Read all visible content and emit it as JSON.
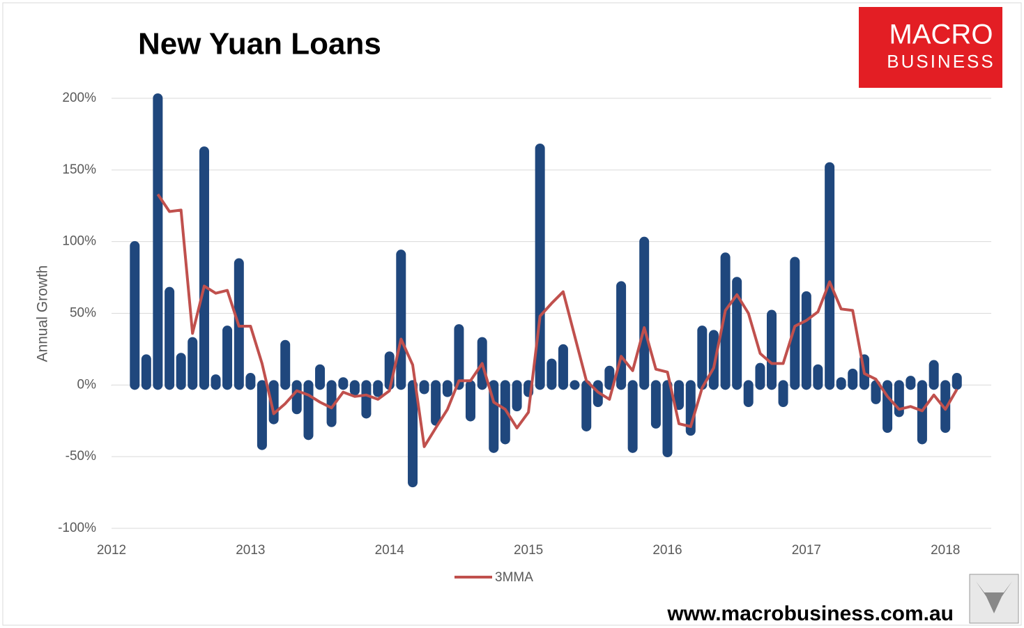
{
  "chart_data": {
    "type": "bar+line",
    "title": "New Yuan Loans",
    "y_label": "Annual Growth",
    "logo": [
      "MACRO",
      "BUSINESS"
    ],
    "footer": "www.macrobusiness.com.au",
    "x": [
      2012.167,
      2012.25,
      2012.333,
      2012.417,
      2012.5,
      2012.583,
      2012.667,
      2012.75,
      2012.833,
      2012.917,
      2013.0,
      2013.083,
      2013.167,
      2013.25,
      2013.333,
      2013.417,
      2013.5,
      2013.583,
      2013.667,
      2013.75,
      2013.833,
      2013.917,
      2014.0,
      2014.083,
      2014.167,
      2014.25,
      2014.333,
      2014.417,
      2014.5,
      2014.583,
      2014.667,
      2014.75,
      2014.833,
      2014.917,
      2015.0,
      2015.083,
      2015.167,
      2015.25,
      2015.333,
      2015.417,
      2015.5,
      2015.583,
      2015.667,
      2015.75,
      2015.833,
      2015.917,
      2016.0,
      2016.083,
      2016.167,
      2016.25,
      2016.333,
      2016.417,
      2016.5,
      2016.583,
      2016.667,
      2016.75,
      2016.833,
      2016.917,
      2017.0,
      2017.083,
      2017.167,
      2017.25,
      2017.333,
      2017.417,
      2017.5,
      2017.583,
      2017.667,
      2017.75,
      2017.833,
      2017.917,
      2018.0,
      2018.083
    ],
    "series": [
      {
        "type": "bar",
        "color": "#1f477d",
        "values": [
          97,
          18,
          200,
          65,
          19,
          30,
          163,
          4,
          38,
          85,
          5,
          -42,
          -24,
          28,
          -17,
          -35,
          11,
          -26,
          2,
          -4,
          -20,
          -5,
          20,
          91,
          -68,
          -3,
          -25,
          -5,
          39,
          -22,
          30,
          -44,
          -38,
          -15,
          -5,
          165,
          15,
          25,
          0,
          -29,
          -12,
          10,
          69,
          -44,
          100,
          -27,
          -47,
          -14,
          -32,
          38,
          35,
          89,
          72,
          -12,
          12,
          49,
          -12,
          86,
          62,
          11,
          152,
          2,
          8,
          18,
          -10,
          -30,
          -19,
          3,
          -38,
          14,
          -30,
          5
        ]
      },
      {
        "type": "line",
        "name": "3MMA",
        "color": "#c0504d",
        "values": [
          null,
          null,
          133,
          121,
          122,
          36,
          69,
          64,
          66,
          41,
          41,
          15,
          -20,
          -13,
          -4,
          -7,
          -12,
          -16,
          -5,
          -8,
          -7,
          -10,
          -4,
          32,
          14,
          -43,
          -30,
          -17,
          3,
          3,
          15,
          -12,
          -17,
          -30,
          -19,
          48,
          57,
          65,
          34,
          3,
          -5,
          -10,
          20,
          10,
          40,
          11,
          9,
          -27,
          -29,
          -2,
          12,
          52,
          63,
          50,
          22,
          15,
          15,
          41,
          45,
          51,
          72,
          53,
          52,
          8,
          4,
          -8,
          -17,
          -15,
          -18,
          -7,
          -17,
          -3
        ]
      }
    ],
    "xlim": [
      2012,
      2018.33
    ],
    "xticks": [
      2012,
      2013,
      2014,
      2015,
      2016,
      2017,
      2018
    ],
    "ylim": [
      -100,
      200
    ],
    "yticks": [
      {
        "value": -100,
        "label": "-100%"
      },
      {
        "value": -50,
        "label": "-50%"
      },
      {
        "value": 0,
        "label": "0%"
      },
      {
        "value": 50,
        "label": "50%"
      },
      {
        "value": 100,
        "label": "100%"
      },
      {
        "value": 150,
        "label": "150%"
      },
      {
        "value": 200,
        "label": "200%"
      }
    ],
    "grid": true,
    "legend": "bottom"
  }
}
